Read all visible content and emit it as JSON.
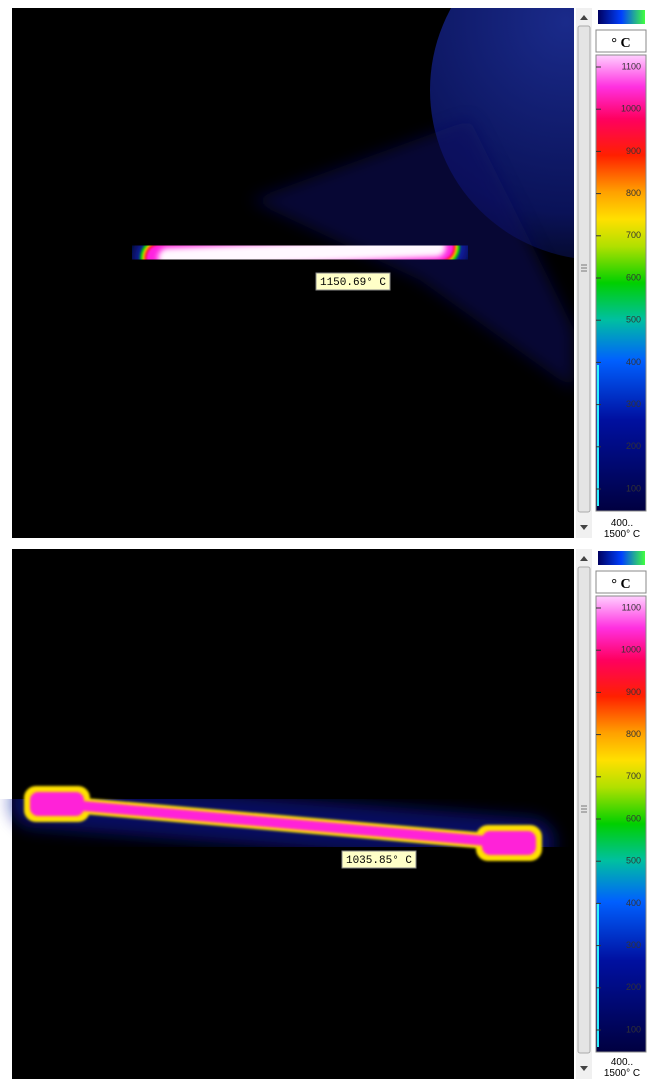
{
  "panels": [
    {
      "unit": "° C",
      "readout": "1150.69° C",
      "scale_ticks": [
        1100,
        1000,
        900,
        800,
        700,
        600,
        500,
        400,
        300,
        200,
        100
      ],
      "range_label": [
        "400..",
        "1500° C"
      ]
    },
    {
      "unit": "° C",
      "readout": "1035.85° C",
      "scale_ticks": [
        1100,
        1000,
        900,
        800,
        700,
        600,
        500,
        400,
        300,
        200,
        100
      ],
      "range_label": [
        "400..",
        "1500° C"
      ]
    }
  ]
}
